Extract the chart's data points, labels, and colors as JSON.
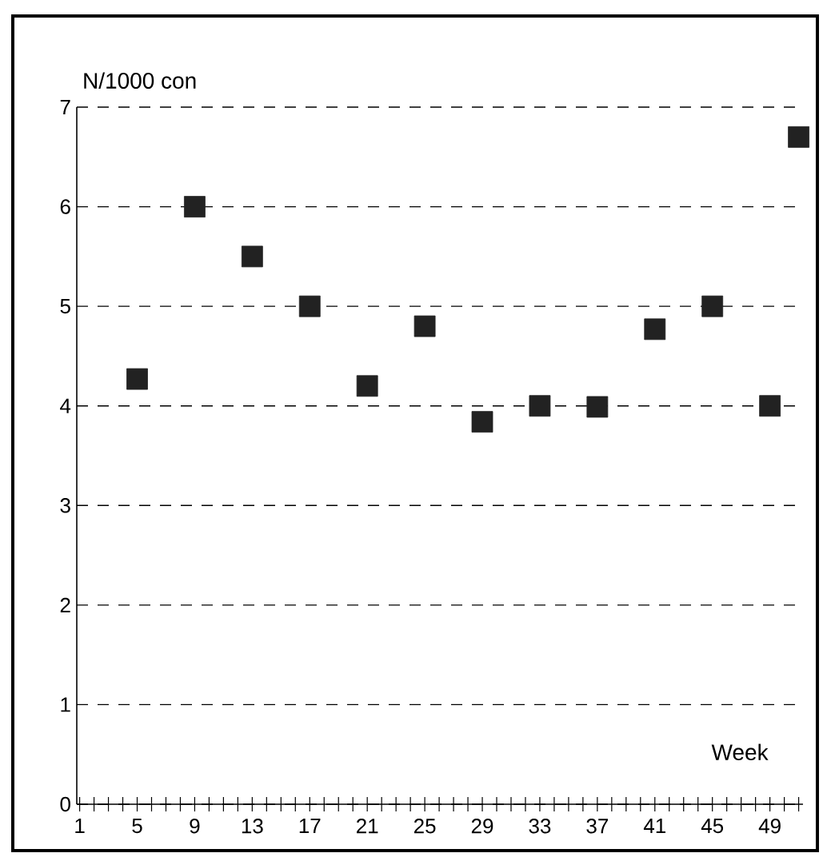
{
  "chart_data": {
    "type": "scatter",
    "ylabel": "N/1000 con",
    "xlabel": "Week",
    "x": [
      5,
      9,
      13,
      17,
      21,
      25,
      29,
      33,
      37,
      41,
      45,
      49,
      51
    ],
    "values": [
      4.27,
      6.0,
      5.5,
      5.0,
      4.2,
      4.8,
      3.84,
      4.0,
      3.99,
      4.77,
      5.0,
      4.0,
      6.7
    ],
    "color": "#222222",
    "marker": "square",
    "grid": "y",
    "xlim": [
      0.8,
      51.3
    ],
    "ylim": [
      0,
      7
    ],
    "yticks": [
      0,
      1,
      2,
      3,
      4,
      5,
      6,
      7
    ],
    "xticks": [
      1,
      {
        "value": 2,
        "label": null
      },
      {
        "value": 3,
        "label": null
      },
      {
        "value": 4,
        "label": null
      },
      5,
      {
        "value": 6,
        "label": null
      },
      {
        "value": 7,
        "label": null
      },
      {
        "value": 8,
        "label": null
      },
      9,
      {
        "value": 10,
        "label": null
      },
      {
        "value": 11,
        "label": null
      },
      {
        "value": 12,
        "label": null
      },
      13,
      {
        "value": 14,
        "label": null
      },
      {
        "value": 15,
        "label": null
      },
      {
        "value": 16,
        "label": null
      },
      17,
      {
        "value": 18,
        "label": null
      },
      {
        "value": 19,
        "label": null
      },
      {
        "value": 20,
        "label": null
      },
      21,
      {
        "value": 22,
        "label": null
      },
      {
        "value": 23,
        "label": null
      },
      {
        "value": 24,
        "label": null
      },
      25,
      {
        "value": 26,
        "label": null
      },
      {
        "value": 27,
        "label": null
      },
      {
        "value": 28,
        "label": null
      },
      29,
      {
        "value": 30,
        "label": null
      },
      {
        "value": 31,
        "label": null
      },
      {
        "value": 32,
        "label": null
      },
      33,
      {
        "value": 34,
        "label": null
      },
      {
        "value": 35,
        "label": null
      },
      {
        "value": 36,
        "label": null
      },
      37,
      {
        "value": 38,
        "label": null
      },
      {
        "value": 39,
        "label": null
      },
      {
        "value": 40,
        "label": null
      },
      41,
      {
        "value": 42,
        "label": null
      },
      {
        "value": 43,
        "label": null
      },
      {
        "value": 44,
        "label": null
      },
      45,
      {
        "value": 46,
        "label": null
      },
      {
        "value": 47,
        "label": null
      },
      {
        "value": 48,
        "label": null
      },
      49,
      {
        "value": 50,
        "label": null
      },
      {
        "value": 51,
        "label": null
      }
    ]
  }
}
